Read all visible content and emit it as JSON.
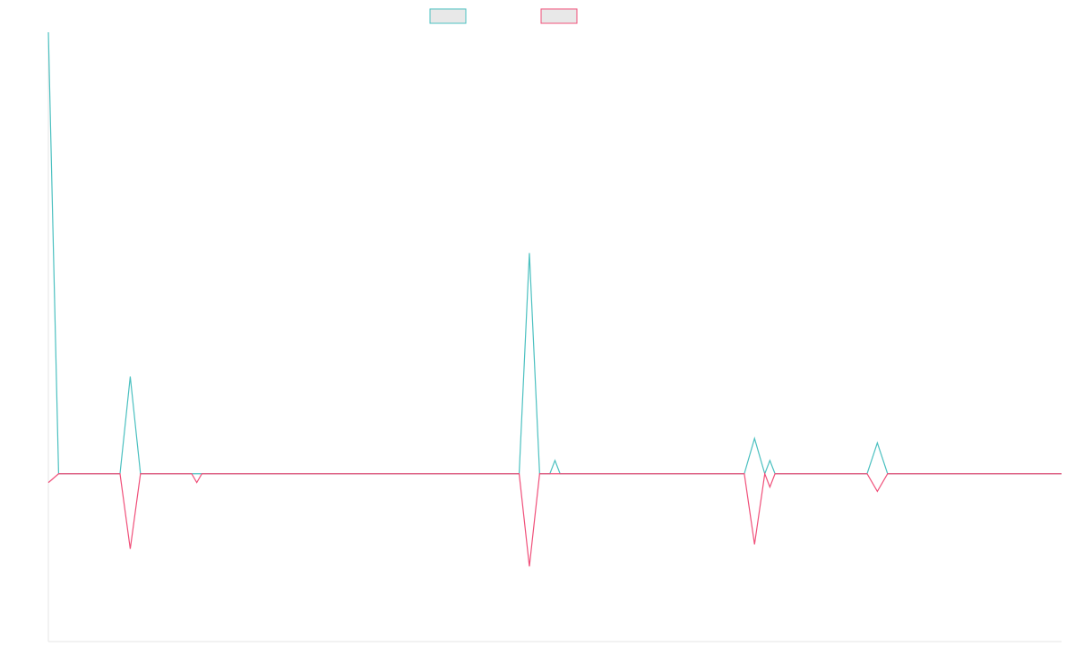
{
  "chart_data": {
    "type": "line",
    "title": "",
    "xlabel": "",
    "ylabel": "",
    "x_count": 100,
    "ylim": [
      -0.38,
      1.0
    ],
    "grid": false,
    "legend_placement": "top-center",
    "series": [
      {
        "color": "#4bc0c0",
        "fill": "#e8e8e8",
        "label": "",
        "points": [
          {
            "x": 0,
            "y": 1.0
          },
          {
            "x": 1,
            "y": 0
          },
          {
            "x": 7,
            "y": 0
          },
          {
            "x": 8,
            "y": 0.22
          },
          {
            "x": 9,
            "y": 0
          },
          {
            "x": 46,
            "y": 0
          },
          {
            "x": 47,
            "y": 0.5
          },
          {
            "x": 48,
            "y": 0
          },
          {
            "x": 49,
            "y": 0
          },
          {
            "x": 49.5,
            "y": 0.03
          },
          {
            "x": 50,
            "y": 0
          },
          {
            "x": 68,
            "y": 0
          },
          {
            "x": 69,
            "y": 0.08
          },
          {
            "x": 70,
            "y": 0
          },
          {
            "x": 70.5,
            "y": 0.03
          },
          {
            "x": 71,
            "y": 0
          },
          {
            "x": 80,
            "y": 0
          },
          {
            "x": 81,
            "y": 0.07
          },
          {
            "x": 82,
            "y": 0
          },
          {
            "x": 99,
            "y": 0
          }
        ]
      },
      {
        "color": "#f0507a",
        "fill": "#e8e8e8",
        "label": "",
        "points": [
          {
            "x": 0,
            "y": -0.02
          },
          {
            "x": 1,
            "y": 0
          },
          {
            "x": 7,
            "y": 0
          },
          {
            "x": 8,
            "y": -0.17
          },
          {
            "x": 9,
            "y": 0
          },
          {
            "x": 14,
            "y": 0
          },
          {
            "x": 14.5,
            "y": -0.02
          },
          {
            "x": 15,
            "y": 0
          },
          {
            "x": 46,
            "y": 0
          },
          {
            "x": 47,
            "y": -0.21
          },
          {
            "x": 48,
            "y": 0
          },
          {
            "x": 49,
            "y": 0
          },
          {
            "x": 50,
            "y": 0
          },
          {
            "x": 68,
            "y": 0
          },
          {
            "x": 69,
            "y": -0.16
          },
          {
            "x": 70,
            "y": 0
          },
          {
            "x": 70.5,
            "y": -0.03
          },
          {
            "x": 71,
            "y": 0
          },
          {
            "x": 80,
            "y": 0
          },
          {
            "x": 81,
            "y": -0.04
          },
          {
            "x": 82,
            "y": 0
          },
          {
            "x": 99,
            "y": 0
          }
        ]
      }
    ]
  }
}
